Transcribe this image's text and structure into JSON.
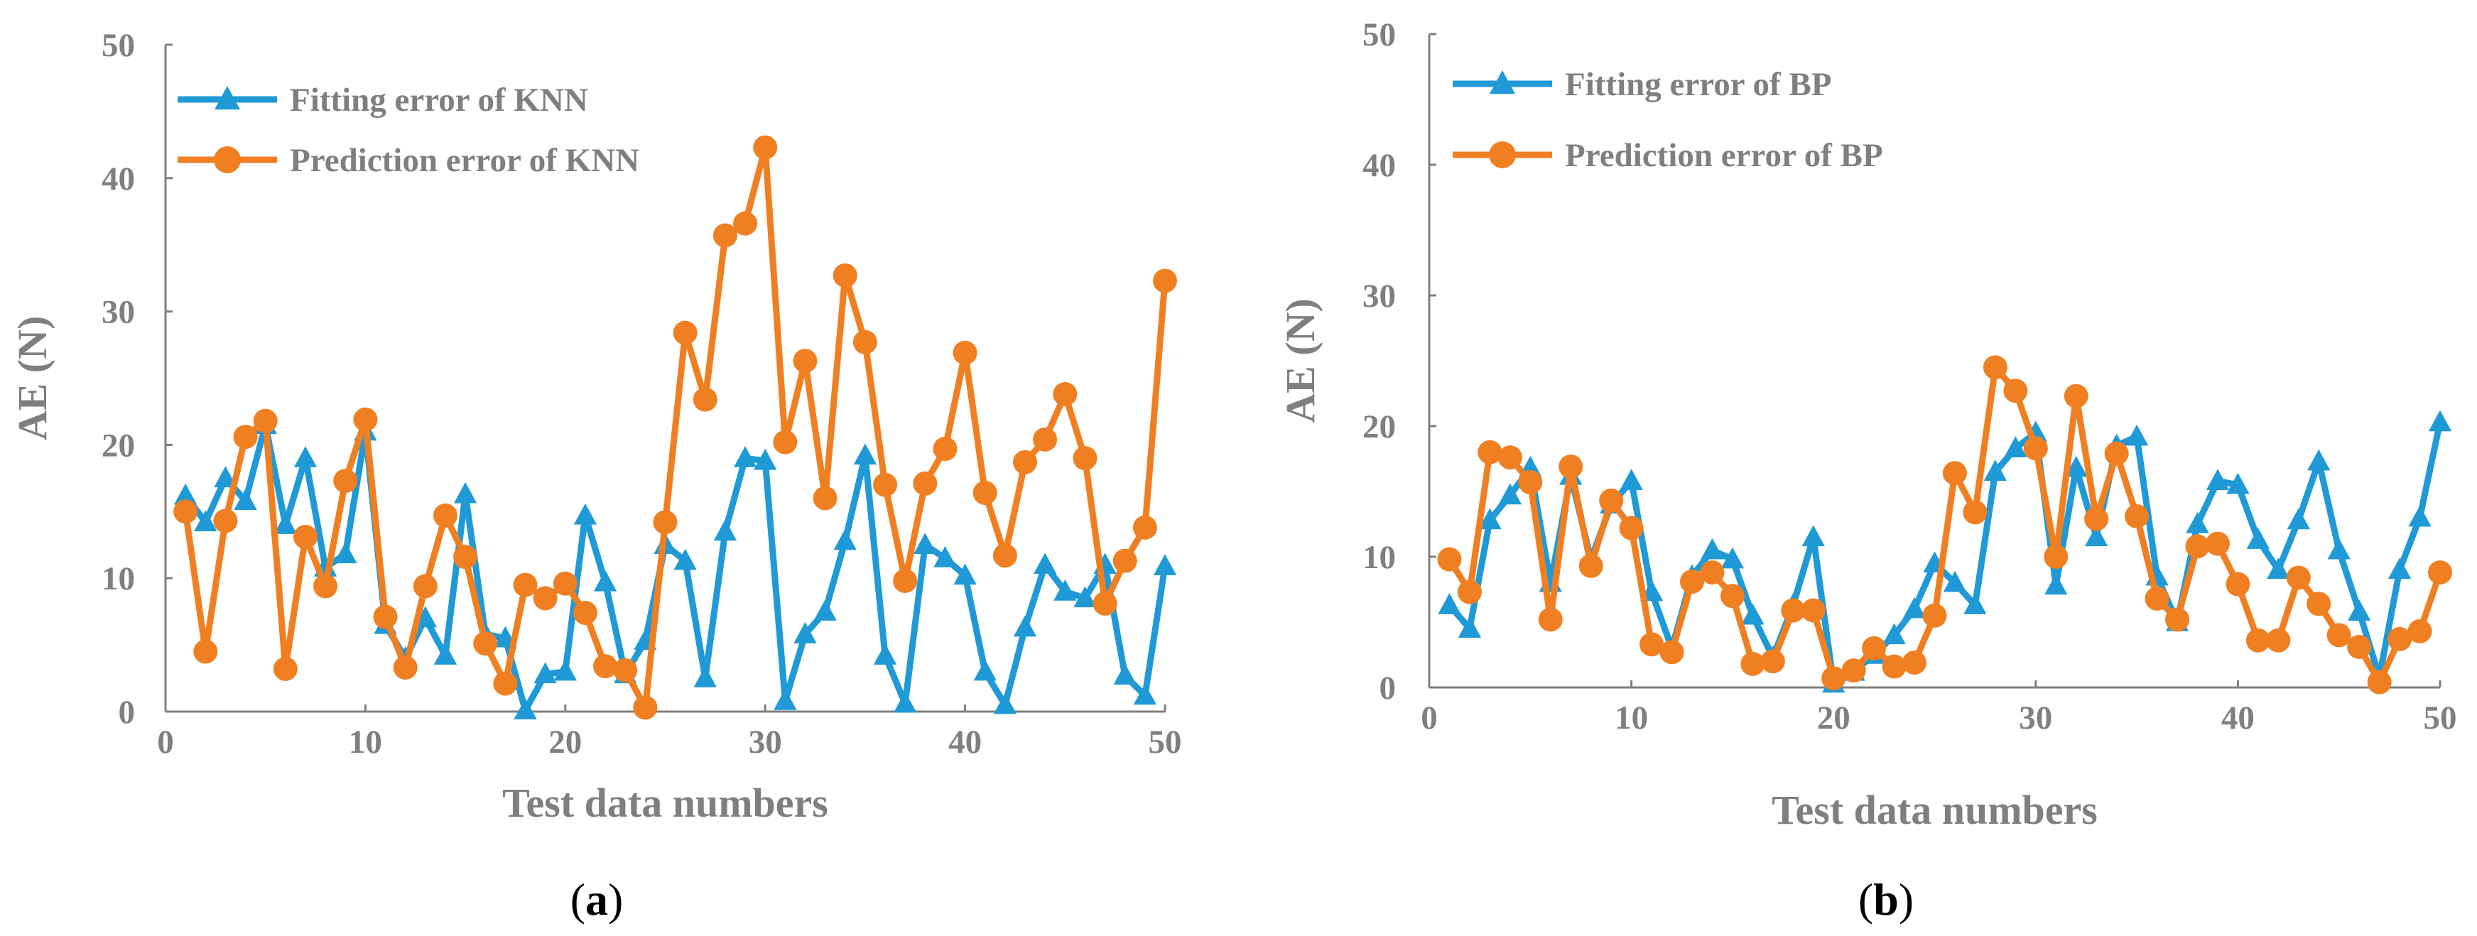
{
  "chart_data": [
    {
      "panel": "(a)",
      "panel_letter": "a",
      "type": "line",
      "xlabel": "Test data numbers",
      "ylabel": "AE (N)",
      "xlim": [
        0,
        50
      ],
      "ylim": [
        0,
        50
      ],
      "xticks": [
        0,
        10,
        20,
        30,
        40,
        50
      ],
      "yticks": [
        0,
        10,
        20,
        30,
        40,
        50
      ],
      "legend_position": "top-left",
      "series": [
        {
          "name": "Fitting error of KNN",
          "marker": "triangle",
          "color": "#1f9ad6",
          "x": [
            1,
            2,
            3,
            4,
            5,
            6,
            7,
            8,
            9,
            10,
            11,
            12,
            13,
            14,
            15,
            16,
            17,
            18,
            19,
            20,
            21,
            22,
            23,
            24,
            25,
            26,
            27,
            28,
            29,
            30,
            31,
            32,
            33,
            34,
            35,
            36,
            37,
            38,
            39,
            40,
            41,
            42,
            43,
            44,
            45,
            46,
            47,
            48,
            49,
            50
          ],
          "values": [
            16.2,
            14.2,
            17.5,
            15.8,
            21.5,
            14.0,
            19.0,
            10.8,
            11.8,
            21.0,
            6.5,
            4.0,
            7.0,
            4.2,
            16.3,
            5.8,
            5.5,
            0.1,
            2.8,
            3.0,
            14.7,
            9.7,
            2.8,
            5.3,
            12.5,
            11.3,
            2.5,
            13.5,
            19.0,
            18.8,
            0.8,
            5.8,
            7.5,
            12.8,
            19.2,
            4.2,
            0.6,
            12.5,
            11.5,
            10.2,
            3.0,
            0.5,
            6.3,
            11.0,
            9.0,
            8.5,
            11.0,
            2.7,
            1.2,
            10.9
          ]
        },
        {
          "name": "Prediction error of KNN",
          "marker": "circle",
          "color": "#f07f22",
          "x": [
            1,
            2,
            3,
            4,
            5,
            6,
            7,
            8,
            9,
            10,
            11,
            12,
            13,
            14,
            15,
            16,
            17,
            18,
            19,
            20,
            21,
            22,
            23,
            24,
            25,
            26,
            27,
            28,
            29,
            30,
            31,
            32,
            33,
            34,
            35,
            36,
            37,
            38,
            39,
            40,
            41,
            42,
            43,
            44,
            45,
            46,
            47,
            48,
            49,
            50
          ],
          "values": [
            15.0,
            4.5,
            14.3,
            20.6,
            21.8,
            3.2,
            13.1,
            9.4,
            17.3,
            21.9,
            7.1,
            3.3,
            9.4,
            14.7,
            11.6,
            5.1,
            2.1,
            9.5,
            8.5,
            9.6,
            7.4,
            3.4,
            3.1,
            0.3,
            14.2,
            28.4,
            23.4,
            35.7,
            36.6,
            42.3,
            20.2,
            26.3,
            16.0,
            32.7,
            27.7,
            17.0,
            9.8,
            17.1,
            19.7,
            26.9,
            16.4,
            11.7,
            18.7,
            20.4,
            23.8,
            19.0,
            8.1,
            11.3,
            13.8,
            32.3
          ]
        }
      ]
    },
    {
      "panel": "(b)",
      "panel_letter": "b",
      "type": "line",
      "xlabel": "Test data numbers",
      "ylabel": "AE (N)",
      "xlim": [
        0,
        50
      ],
      "ylim": [
        0,
        50
      ],
      "xticks": [
        0,
        10,
        20,
        30,
        40,
        50
      ],
      "yticks": [
        0,
        10,
        20,
        30,
        40,
        50
      ],
      "legend_position": "top-left",
      "series": [
        {
          "name": "Fitting error of BP",
          "marker": "triangle",
          "color": "#1f9ad6",
          "x": [
            1,
            2,
            3,
            4,
            5,
            6,
            7,
            8,
            9,
            10,
            11,
            12,
            13,
            14,
            15,
            16,
            17,
            18,
            19,
            20,
            21,
            22,
            23,
            24,
            25,
            26,
            27,
            28,
            29,
            30,
            31,
            32,
            33,
            34,
            35,
            36,
            37,
            38,
            39,
            40,
            41,
            42,
            43,
            44,
            45,
            46,
            47,
            48,
            49,
            50
          ],
          "values": [
            6.3,
            4.5,
            12.8,
            14.7,
            16.8,
            8.0,
            16.2,
            9.8,
            14.0,
            15.8,
            7.3,
            3.0,
            8.5,
            10.5,
            9.8,
            5.5,
            2.3,
            6.3,
            11.5,
            0.3,
            1.2,
            2.5,
            4.0,
            6.0,
            9.5,
            8.0,
            6.3,
            16.5,
            18.3,
            19.5,
            7.8,
            16.8,
            11.5,
            18.5,
            19.2,
            8.5,
            5.0,
            12.5,
            15.8,
            15.5,
            11.3,
            9.0,
            12.8,
            17.3,
            10.5,
            5.8,
            0.8,
            9.0,
            13.0,
            20.3
          ]
        },
        {
          "name": "Prediction error of BP",
          "marker": "circle",
          "color": "#f07f22",
          "x": [
            1,
            2,
            3,
            4,
            5,
            6,
            7,
            8,
            9,
            10,
            11,
            12,
            13,
            14,
            15,
            16,
            17,
            18,
            19,
            20,
            21,
            22,
            23,
            24,
            25,
            26,
            27,
            28,
            29,
            30,
            31,
            32,
            33,
            34,
            35,
            36,
            37,
            38,
            39,
            40,
            41,
            42,
            43,
            44,
            45,
            46,
            47,
            48,
            49,
            50
          ],
          "values": [
            9.8,
            7.3,
            18.0,
            17.6,
            15.7,
            5.2,
            16.9,
            9.3,
            14.3,
            12.2,
            3.3,
            2.7,
            8.1,
            8.8,
            7.0,
            1.8,
            2.0,
            5.9,
            5.9,
            0.7,
            1.3,
            3.0,
            1.6,
            1.9,
            5.5,
            16.4,
            13.4,
            24.5,
            22.7,
            18.3,
            10.0,
            22.3,
            12.9,
            17.9,
            13.1,
            6.8,
            5.2,
            10.8,
            11.0,
            7.9,
            3.6,
            3.6,
            8.4,
            6.4,
            4.0,
            3.1,
            0.4,
            3.7,
            4.3,
            8.8
          ]
        }
      ]
    }
  ]
}
